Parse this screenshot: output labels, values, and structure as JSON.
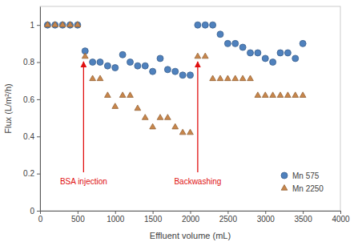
{
  "chart_data": {
    "type": "scatter",
    "x_label": "Effluent volume  (mL)",
    "y_label": "Flux (L/m²/h)",
    "x": [
      100,
      200,
      300,
      400,
      500,
      600,
      700,
      800,
      900,
      1000,
      1100,
      1200,
      1300,
      1400,
      1500,
      1600,
      1700,
      1800,
      1900,
      2000,
      2100,
      2200,
      2300,
      2400,
      2500,
      2600,
      2700,
      2800,
      2900,
      3000,
      3100,
      3200,
      3300,
      3400,
      3500
    ],
    "series": [
      {
        "name": "Mn 575",
        "color": "#4f81bd",
        "marker": "circle",
        "values": [
          1,
          1,
          1,
          1,
          1,
          0.86,
          0.8,
          0.8,
          0.78,
          0.77,
          0.84,
          0.8,
          0.78,
          0.78,
          0.75,
          0.82,
          0.76,
          0.75,
          0.73,
          0.73,
          1,
          1,
          1,
          0.95,
          0.9,
          0.9,
          0.88,
          0.85,
          0.85,
          0.82,
          0.8,
          0.85,
          0.85,
          0.82,
          0.9
        ]
      },
      {
        "name": "Mn 2250",
        "color": "#c8864b",
        "marker": "triangle",
        "values": [
          1,
          1,
          1,
          1,
          1,
          0.83,
          0.71,
          0.71,
          0.62,
          0.56,
          0.62,
          0.62,
          0.55,
          0.5,
          0.45,
          0.5,
          0.5,
          0.45,
          0.42,
          0.42,
          0.83,
          0.83,
          0.71,
          0.71,
          0.71,
          0.71,
          0.71,
          0.71,
          0.62,
          0.62,
          0.62,
          0.62,
          0.62,
          0.62,
          0.62
        ]
      }
    ],
    "xlim": [
      0,
      4000
    ],
    "xticks": [
      0,
      500,
      1000,
      1500,
      2000,
      2500,
      3000,
      3500,
      4000
    ],
    "ylim": [
      0,
      1.1
    ],
    "yticks": [
      0,
      0.2,
      0.4,
      0.6,
      0.8,
      1
    ],
    "grid": false,
    "legend": "lower right",
    "annotations": [
      {
        "text": "BSA injection",
        "x": 580,
        "y": 0.82
      },
      {
        "text": "Backwashing",
        "x": 2100,
        "y": 0.82
      }
    ]
  }
}
